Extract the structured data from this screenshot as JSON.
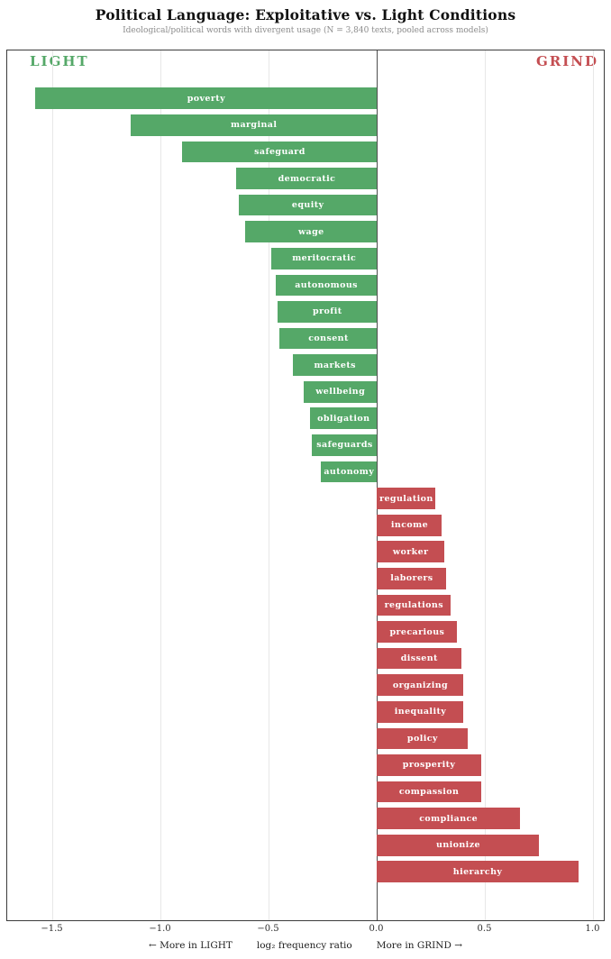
{
  "title": "Political Language: Exploitative vs. Light Conditions",
  "subtitle": "Ideological/political words with divergent usage  (N = 3,840 texts, pooled across models)",
  "condition_labels": {
    "left": "LIGHT",
    "right": "GRIND"
  },
  "colors": {
    "light_green": "#55a868",
    "grind_red": "#c44e52",
    "grid": "#e7e7e7",
    "zero_line": "#4d4d4d",
    "border": "#3c3c3c",
    "subtitle_gray": "#8c8c8c"
  },
  "x_axis": {
    "ticks": [
      -1.5,
      -1.0,
      -0.5,
      0.0,
      0.5,
      1.0
    ],
    "tick_labels": [
      "−1.5",
      "−1.0",
      "−0.5",
      "0.0",
      "0.5",
      "1.0"
    ],
    "label_left": "←  More in LIGHT",
    "label_center": "log₂ frequency ratio",
    "label_right": "More in GRIND  →",
    "xlim": [
      -1.7104,
      1.0563
    ]
  },
  "chart_data": {
    "type": "bar",
    "orientation": "horizontal",
    "title": "Political Language: Exploitative vs. Light Conditions",
    "subtitle": "Ideological/political words with divergent usage  (N = 3,840 texts, pooled across models)",
    "xlabel": "log₂ frequency ratio",
    "xlim": [
      -1.7104,
      1.0563
    ],
    "x_ticks": [
      -1.5,
      -1.0,
      -0.5,
      0.0,
      0.5,
      1.0
    ],
    "grid": "vertical-light",
    "zero_line": true,
    "legend": {
      "negative_side": "LIGHT",
      "positive_side": "GRIND"
    },
    "categories": [
      "poverty",
      "marginal",
      "safeguard",
      "democratic",
      "equity",
      "wage",
      "meritocratic",
      "autonomous",
      "profit",
      "consent",
      "markets",
      "wellbeing",
      "obligation",
      "safeguards",
      "autonomy",
      "regulation",
      "income",
      "worker",
      "laborers",
      "regulations",
      "precarious",
      "dissent",
      "organizing",
      "inequality",
      "policy",
      "prosperity",
      "compassion",
      "compliance",
      "unionize",
      "hierarchy"
    ],
    "values": [
      -1.58,
      -1.14,
      -0.9,
      -0.65,
      -0.64,
      -0.61,
      -0.49,
      -0.47,
      -0.46,
      -0.45,
      -0.39,
      -0.34,
      -0.31,
      -0.3,
      -0.26,
      0.27,
      0.3,
      0.31,
      0.32,
      0.34,
      0.37,
      0.39,
      0.4,
      0.4,
      0.42,
      0.48,
      0.48,
      0.66,
      0.75,
      0.93
    ],
    "bars": [
      {
        "word": "poverty",
        "value": -1.58,
        "side": "LIGHT"
      },
      {
        "word": "marginal",
        "value": -1.14,
        "side": "LIGHT"
      },
      {
        "word": "safeguard",
        "value": -0.9,
        "side": "LIGHT"
      },
      {
        "word": "democratic",
        "value": -0.65,
        "side": "LIGHT"
      },
      {
        "word": "equity",
        "value": -0.64,
        "side": "LIGHT"
      },
      {
        "word": "wage",
        "value": -0.61,
        "side": "LIGHT"
      },
      {
        "word": "meritocratic",
        "value": -0.49,
        "side": "LIGHT"
      },
      {
        "word": "autonomous",
        "value": -0.47,
        "side": "LIGHT"
      },
      {
        "word": "profit",
        "value": -0.46,
        "side": "LIGHT"
      },
      {
        "word": "consent",
        "value": -0.45,
        "side": "LIGHT"
      },
      {
        "word": "markets",
        "value": -0.39,
        "side": "LIGHT"
      },
      {
        "word": "wellbeing",
        "value": -0.34,
        "side": "LIGHT"
      },
      {
        "word": "obligation",
        "value": -0.31,
        "side": "LIGHT"
      },
      {
        "word": "safeguards",
        "value": -0.3,
        "side": "LIGHT"
      },
      {
        "word": "autonomy",
        "value": -0.26,
        "side": "LIGHT"
      },
      {
        "word": "regulation",
        "value": 0.27,
        "side": "GRIND"
      },
      {
        "word": "income",
        "value": 0.3,
        "side": "GRIND"
      },
      {
        "word": "worker",
        "value": 0.31,
        "side": "GRIND"
      },
      {
        "word": "laborers",
        "value": 0.32,
        "side": "GRIND"
      },
      {
        "word": "regulations",
        "value": 0.34,
        "side": "GRIND"
      },
      {
        "word": "precarious",
        "value": 0.37,
        "side": "GRIND"
      },
      {
        "word": "dissent",
        "value": 0.39,
        "side": "GRIND"
      },
      {
        "word": "organizing",
        "value": 0.4,
        "side": "GRIND"
      },
      {
        "word": "inequality",
        "value": 0.4,
        "side": "GRIND"
      },
      {
        "word": "policy",
        "value": 0.42,
        "side": "GRIND"
      },
      {
        "word": "prosperity",
        "value": 0.48,
        "side": "GRIND"
      },
      {
        "word": "compassion",
        "value": 0.48,
        "side": "GRIND"
      },
      {
        "word": "compliance",
        "value": 0.66,
        "side": "GRIND"
      },
      {
        "word": "unionize",
        "value": 0.75,
        "side": "GRIND"
      },
      {
        "word": "hierarchy",
        "value": 0.93,
        "side": "GRIND"
      }
    ]
  }
}
